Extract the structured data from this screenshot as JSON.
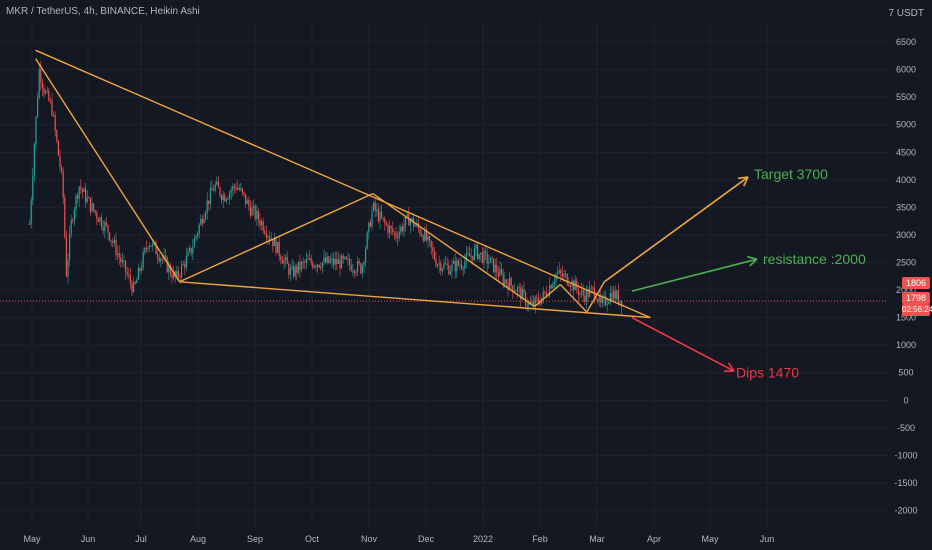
{
  "header": {
    "title": "MKR / TetherUS, 4h, BINANCE, Heikin Ashi",
    "currency": "7 USDT"
  },
  "price_tags": {
    "last": "1806",
    "current": "1798",
    "countdown": "02:56:24"
  },
  "colors": {
    "background": "#141823",
    "up": "#26a69a",
    "down": "#ef5350",
    "trendline": "#f0a53c",
    "target": "#f0a53c",
    "resistance": "#4caf50",
    "dip": "#f23645",
    "price_line": "#ef5350",
    "grid": "#1e222d",
    "axis_text": "#b2b5be"
  },
  "chart_data": {
    "type": "candlestick",
    "x_ticks": [
      "May",
      "Jun",
      "Jul",
      "Aug",
      "Sep",
      "Oct",
      "Nov",
      "Dec",
      "2022",
      "Feb",
      "Mar",
      "Apr",
      "May",
      "Jun"
    ],
    "y_ticks": [
      6500,
      6000,
      5500,
      5000,
      4500,
      4000,
      3500,
      3000,
      2500,
      2000,
      1500,
      1000,
      500,
      0,
      -500,
      -1000,
      -1500,
      -2000
    ],
    "ylim": [
      -2300,
      6900
    ],
    "price_path": [
      {
        "x": "Apr 25",
        "y": 3200
      },
      {
        "x": "May 2",
        "y": 4500
      },
      {
        "x": "May 5",
        "y": 6000
      },
      {
        "x": "May 8",
        "y": 5600
      },
      {
        "x": "May 12",
        "y": 5300
      },
      {
        "x": "May 15",
        "y": 4600
      },
      {
        "x": "May 18",
        "y": 3900
      },
      {
        "x": "May 20",
        "y": 2300
      },
      {
        "x": "May 23",
        "y": 3300
      },
      {
        "x": "May 27",
        "y": 3900
      },
      {
        "x": "Jun 3",
        "y": 3500
      },
      {
        "x": "Jun 12",
        "y": 3100
      },
      {
        "x": "Jun 20",
        "y": 2500
      },
      {
        "x": "Jun 27",
        "y": 2000
      },
      {
        "x": "Jul 5",
        "y": 2900
      },
      {
        "x": "Jul 12",
        "y": 2600
      },
      {
        "x": "Jul 20",
        "y": 2200
      },
      {
        "x": "Jul 28",
        "y": 2700
      },
      {
        "x": "Aug 5",
        "y": 3500
      },
      {
        "x": "Aug 10",
        "y": 3900
      },
      {
        "x": "Aug 15",
        "y": 3700
      },
      {
        "x": "Aug 22",
        "y": 3900
      },
      {
        "x": "Aug 29",
        "y": 3500
      },
      {
        "x": "Sep 5",
        "y": 3200
      },
      {
        "x": "Sep 12",
        "y": 2800
      },
      {
        "x": "Sep 20",
        "y": 2300
      },
      {
        "x": "Sep 28",
        "y": 2500
      },
      {
        "x": "Oct 8",
        "y": 2500
      },
      {
        "x": "Oct 18",
        "y": 2500
      },
      {
        "x": "Oct 28",
        "y": 2400
      },
      {
        "x": "Nov 3",
        "y": 3500
      },
      {
        "x": "Nov 9",
        "y": 3200
      },
      {
        "x": "Nov 15",
        "y": 3000
      },
      {
        "x": "Nov 22",
        "y": 3300
      },
      {
        "x": "Nov 30",
        "y": 3000
      },
      {
        "x": "Dec 7",
        "y": 2500
      },
      {
        "x": "Dec 14",
        "y": 2400
      },
      {
        "x": "Dec 21",
        "y": 2500
      },
      {
        "x": "Dec 28",
        "y": 2700
      },
      {
        "x": "Jan 5",
        "y": 2500
      },
      {
        "x": "Jan 12",
        "y": 2200
      },
      {
        "x": "Jan 20",
        "y": 2000
      },
      {
        "x": "Jan 27",
        "y": 1700
      },
      {
        "x": "Feb 3",
        "y": 1900
      },
      {
        "x": "Feb 9",
        "y": 2300
      },
      {
        "x": "Feb 15",
        "y": 2200
      },
      {
        "x": "Feb 22",
        "y": 1900
      },
      {
        "x": "Feb 28",
        "y": 2000
      },
      {
        "x": "Mar 3",
        "y": 1700
      },
      {
        "x": "Mar 9",
        "y": 1950
      },
      {
        "x": "Mar 15",
        "y": 1800
      }
    ],
    "trendlines": [
      {
        "from": {
          "x": "May 3",
          "y": 6350
        },
        "to": {
          "x": "Mar 30",
          "y": 1500
        }
      },
      {
        "from": {
          "x": "May 3",
          "y": 6200
        },
        "to": {
          "x": "Jul 22",
          "y": 2150
        }
      },
      {
        "from": {
          "x": "Jul 22",
          "y": 2150
        },
        "to": {
          "x": "Mar 30",
          "y": 1500
        }
      },
      {
        "from": {
          "x": "Jul 22",
          "y": 2150
        },
        "to": {
          "x": "Nov 3",
          "y": 3750
        }
      },
      {
        "from": {
          "x": "Nov 3",
          "y": 3750
        },
        "to": {
          "x": "Jan 29",
          "y": 1700
        }
      },
      {
        "from": {
          "x": "Jan 29",
          "y": 1700
        },
        "to": {
          "x": "Feb 11",
          "y": 2100
        }
      },
      {
        "from": {
          "x": "Feb 11",
          "y": 2100
        },
        "to": {
          "x": "Feb 24",
          "y": 1600
        }
      },
      {
        "from": {
          "x": "Feb 24",
          "y": 1600
        },
        "to": {
          "x": "Mar 5",
          "y": 2150
        }
      }
    ],
    "annotations": [
      {
        "text": "Target 3700",
        "value": 3700,
        "color": "#4caf50",
        "arrow_color": "#f0a53c"
      },
      {
        "text": "resistance :2000",
        "value": 2000,
        "color": "#4caf50",
        "arrow_color": "#4caf50"
      },
      {
        "text": "Dips 1470",
        "value": 1470,
        "color": "#f23645",
        "arrow_color": "#f23645"
      }
    ],
    "price_line": 1798
  }
}
